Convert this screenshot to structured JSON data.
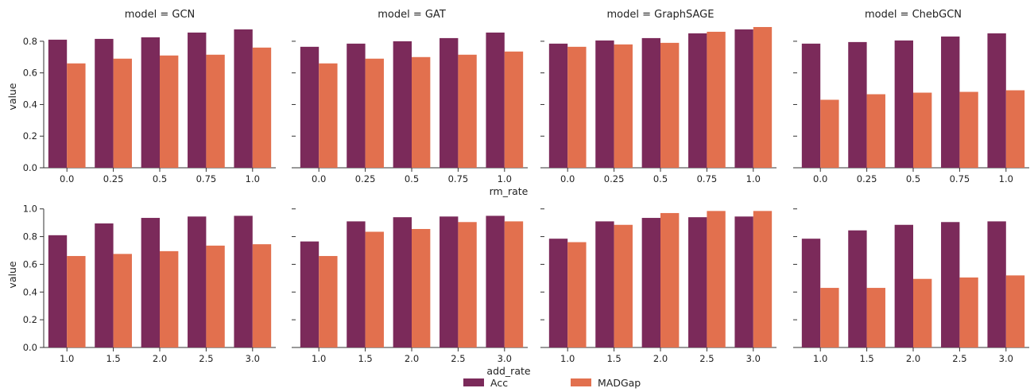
{
  "colors": {
    "acc": "#7b2a5a",
    "madgap": "#e2704e"
  },
  "legend": [
    {
      "key": "acc",
      "label": "Acc"
    },
    {
      "key": "madgap",
      "label": "MADGap"
    }
  ],
  "chart_data": [
    {
      "type": "bar",
      "title": "model = GCN",
      "xlabel": "",
      "ylabel": "value",
      "ylim": [
        0,
        0.9
      ],
      "yticks": [
        "0.0",
        "0.2",
        "0.4",
        "0.6",
        "0.8"
      ],
      "categories": [
        "0.0",
        "0.25",
        "0.5",
        "0.75",
        "1.0"
      ],
      "series": [
        {
          "name": "Acc",
          "values": [
            0.81,
            0.815,
            0.825,
            0.855,
            0.875
          ]
        },
        {
          "name": "MADGap",
          "values": [
            0.66,
            0.69,
            0.71,
            0.715,
            0.76
          ]
        }
      ]
    },
    {
      "type": "bar",
      "title": "model = GAT",
      "xlabel": "",
      "ylabel": "",
      "ylim": [
        0,
        0.9
      ],
      "categories": [
        "0.0",
        "0.25",
        "0.5",
        "0.75",
        "1.0"
      ],
      "series": [
        {
          "name": "Acc",
          "values": [
            0.765,
            0.785,
            0.8,
            0.82,
            0.855
          ]
        },
        {
          "name": "MADGap",
          "values": [
            0.66,
            0.69,
            0.7,
            0.715,
            0.735
          ]
        }
      ]
    },
    {
      "type": "bar",
      "title": "model = GraphSAGE",
      "xlabel": "rm_rate",
      "ylabel": "",
      "ylim": [
        0,
        0.9
      ],
      "categories": [
        "0.0",
        "0.25",
        "0.5",
        "0.75",
        "1.0"
      ],
      "series": [
        {
          "name": "Acc",
          "values": [
            0.785,
            0.805,
            0.82,
            0.85,
            0.875
          ]
        },
        {
          "name": "MADGap",
          "values": [
            0.765,
            0.78,
            0.79,
            0.86,
            0.89
          ]
        }
      ]
    },
    {
      "type": "bar",
      "title": "model = ChebGCN",
      "xlabel": "",
      "ylabel": "",
      "ylim": [
        0,
        0.9
      ],
      "categories": [
        "0.0",
        "0.25",
        "0.5",
        "0.75",
        "1.0"
      ],
      "series": [
        {
          "name": "Acc",
          "values": [
            0.785,
            0.795,
            0.805,
            0.83,
            0.85
          ]
        },
        {
          "name": "MADGap",
          "values": [
            0.43,
            0.465,
            0.475,
            0.48,
            0.49
          ]
        }
      ]
    },
    {
      "type": "bar",
      "title": "",
      "xlabel": "",
      "ylabel": "value",
      "ylim": [
        0,
        1.05
      ],
      "yticks": [
        "0.0",
        "0.2",
        "0.4",
        "0.6",
        "0.8",
        "1.0"
      ],
      "categories": [
        "1.0",
        "1.5",
        "2.0",
        "2.5",
        "3.0"
      ],
      "series": [
        {
          "name": "Acc",
          "values": [
            0.81,
            0.895,
            0.935,
            0.945,
            0.95
          ]
        },
        {
          "name": "MADGap",
          "values": [
            0.66,
            0.675,
            0.695,
            0.735,
            0.745
          ]
        }
      ]
    },
    {
      "type": "bar",
      "title": "",
      "xlabel": "",
      "ylabel": "",
      "ylim": [
        0,
        1.05
      ],
      "categories": [
        "1.0",
        "1.5",
        "2.0",
        "2.5",
        "3.0"
      ],
      "series": [
        {
          "name": "Acc",
          "values": [
            0.765,
            0.91,
            0.94,
            0.945,
            0.95
          ]
        },
        {
          "name": "MADGap",
          "values": [
            0.66,
            0.835,
            0.855,
            0.905,
            0.91
          ]
        }
      ]
    },
    {
      "type": "bar",
      "title": "",
      "xlabel": "add_rate",
      "ylabel": "",
      "ylim": [
        0,
        1.05
      ],
      "categories": [
        "1.0",
        "1.5",
        "2.0",
        "2.5",
        "3.0"
      ],
      "series": [
        {
          "name": "Acc",
          "values": [
            0.785,
            0.91,
            0.935,
            0.94,
            0.945
          ]
        },
        {
          "name": "MADGap",
          "values": [
            0.76,
            0.885,
            0.97,
            0.985,
            0.985
          ]
        }
      ]
    },
    {
      "type": "bar",
      "title": "",
      "xlabel": "",
      "ylabel": "",
      "ylim": [
        0,
        1.05
      ],
      "categories": [
        "1.0",
        "1.5",
        "2.0",
        "2.5",
        "3.0"
      ],
      "series": [
        {
          "name": "Acc",
          "values": [
            0.785,
            0.845,
            0.885,
            0.905,
            0.91
          ]
        },
        {
          "name": "MADGap",
          "values": [
            0.43,
            0.43,
            0.495,
            0.505,
            0.52
          ]
        }
      ]
    }
  ]
}
